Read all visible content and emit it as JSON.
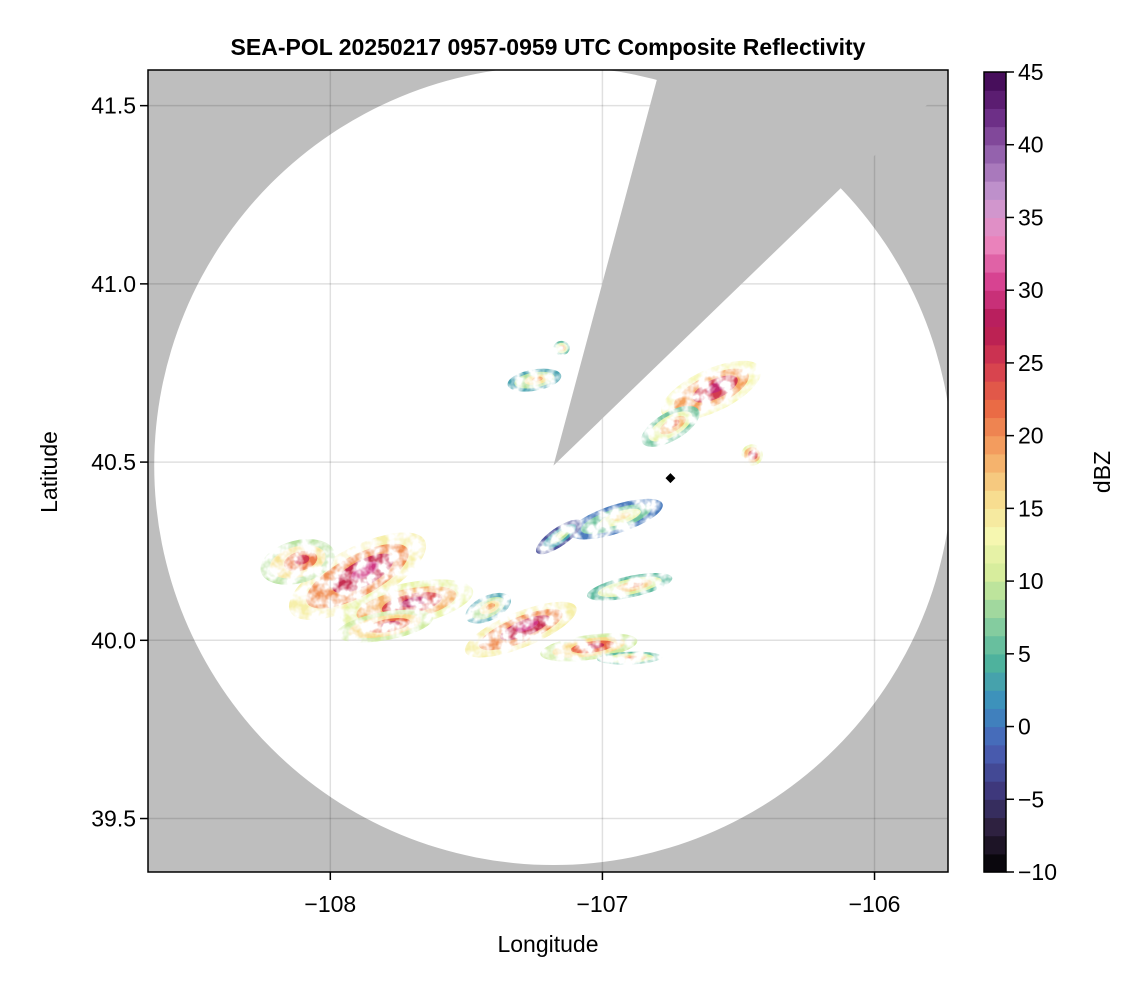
{
  "chart_data": {
    "type": "heatmap",
    "title": "SEA-POL 20250217 0957-0959 UTC Composite Reflectivity",
    "xlabel": "Longitude",
    "ylabel": "Latitude",
    "xlim": [
      -108.67,
      -105.73
    ],
    "ylim": [
      39.35,
      41.6
    ],
    "xticks": [
      -108,
      -107,
      -106
    ],
    "xtick_labels": [
      "−108",
      "−107",
      "−106"
    ],
    "yticks": [
      39.5,
      40.0,
      40.5,
      41.0,
      41.5
    ],
    "ytick_labels": [
      "39.5",
      "40.0",
      "40.5",
      "41.0",
      "41.5"
    ],
    "grid": true,
    "background_color": "#bebebe",
    "radar_site": {
      "lon": -107.18,
      "lat": 40.49
    },
    "coverage": {
      "center_lon": -107.18,
      "center_lat": 40.49,
      "radius_deg_lat": 1.12
    },
    "blocked_sector": {
      "from_bearing_deg": 15,
      "to_bearing_deg": 46
    },
    "marker": {
      "lon": -106.75,
      "lat": 40.455,
      "color": "#000000"
    },
    "colorbar": {
      "label": "dBZ",
      "min": -10,
      "max": 45,
      "step": 1.25,
      "ticks": [
        -10,
        -5,
        0,
        5,
        10,
        15,
        20,
        25,
        30,
        35,
        40,
        45
      ],
      "tick_labels": [
        "−10",
        "−5",
        "0",
        "5",
        "10",
        "15",
        "20",
        "25",
        "30",
        "35",
        "40",
        "45"
      ],
      "colormap": [
        "#000000",
        "#2c1f3a",
        "#3f3a80",
        "#4a62b8",
        "#3b8ebf",
        "#4fb39c",
        "#8fd1a0",
        "#d2ec9a",
        "#f6f7b0",
        "#f7d88a",
        "#f4a462",
        "#ea6c45",
        "#d53e4f",
        "#b31854",
        "#d6408f",
        "#ec8ac0",
        "#c89ad1",
        "#9665b0",
        "#6a2a83",
        "#3e0650"
      ]
    },
    "echo_regions": [
      {
        "lon": -107.9,
        "lat": 40.18,
        "rlon": 0.28,
        "rlat": 0.08,
        "angle": 28,
        "dbz": 23
      },
      {
        "lon": -108.12,
        "lat": 40.22,
        "rlon": 0.14,
        "rlat": 0.06,
        "angle": 15,
        "dbz": 18
      },
      {
        "lon": -107.72,
        "lat": 40.1,
        "rlon": 0.25,
        "rlat": 0.06,
        "angle": 12,
        "dbz": 21
      },
      {
        "lon": -107.8,
        "lat": 40.04,
        "rlon": 0.18,
        "rlat": 0.04,
        "angle": 10,
        "dbz": 19
      },
      {
        "lon": -107.3,
        "lat": 40.03,
        "rlon": 0.22,
        "rlat": 0.05,
        "angle": 22,
        "dbz": 23
      },
      {
        "lon": -107.05,
        "lat": 39.98,
        "rlon": 0.18,
        "rlat": 0.035,
        "angle": 8,
        "dbz": 19
      },
      {
        "lon": -106.9,
        "lat": 39.95,
        "rlon": 0.12,
        "rlat": 0.018,
        "angle": 2,
        "dbz": 14
      },
      {
        "lon": -107.42,
        "lat": 40.09,
        "rlon": 0.09,
        "rlat": 0.035,
        "angle": 25,
        "dbz": 12
      },
      {
        "lon": -106.95,
        "lat": 40.34,
        "rlon": 0.18,
        "rlat": 0.04,
        "angle": 18,
        "dbz": 9
      },
      {
        "lon": -107.16,
        "lat": 40.29,
        "rlon": 0.1,
        "rlat": 0.026,
        "angle": 35,
        "dbz": 6
      },
      {
        "lon": -106.9,
        "lat": 40.15,
        "rlon": 0.16,
        "rlat": 0.03,
        "angle": 12,
        "dbz": 14
      },
      {
        "lon": -106.6,
        "lat": 40.7,
        "rlon": 0.2,
        "rlat": 0.06,
        "angle": 25,
        "dbz": 22
      },
      {
        "lon": -106.75,
        "lat": 40.6,
        "rlon": 0.12,
        "rlat": 0.04,
        "angle": 30,
        "dbz": 15
      },
      {
        "lon": -106.45,
        "lat": 40.52,
        "rlon": 0.04,
        "rlat": 0.03,
        "angle": 0,
        "dbz": 21
      },
      {
        "lon": -107.25,
        "lat": 40.73,
        "rlon": 0.1,
        "rlat": 0.03,
        "angle": 10,
        "dbz": 12
      },
      {
        "lon": -107.15,
        "lat": 40.82,
        "rlon": 0.03,
        "rlat": 0.02,
        "angle": 0,
        "dbz": 14
      }
    ]
  }
}
